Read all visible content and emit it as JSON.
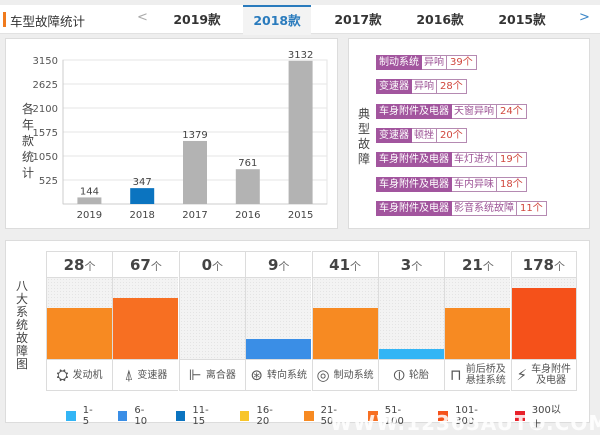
{
  "header": {
    "title": "车型故障统计",
    "prev_arrow": "<",
    "next_arrow": ">",
    "tabs": [
      {
        "label": "2019款",
        "active": false
      },
      {
        "label": "2018款",
        "active": true
      },
      {
        "label": "2017款",
        "active": false
      },
      {
        "label": "2016款",
        "active": false
      },
      {
        "label": "2015款",
        "active": false
      }
    ]
  },
  "years_panel": {
    "side_label": "各年款统计"
  },
  "chart_data": {
    "type": "bar",
    "title": "",
    "xlabel": "",
    "ylabel": "各年款统计",
    "categories": [
      "2019",
      "2018",
      "2017",
      "2016",
      "2015"
    ],
    "values": [
      144,
      347,
      1379,
      761,
      3132
    ],
    "highlight_index": 1,
    "yticks": [
      525,
      1050,
      1575,
      2100,
      2625,
      3150
    ],
    "ylim": [
      0,
      3150
    ],
    "grid": true,
    "colors": {
      "default": "#b3b3b3",
      "highlight": "#0b74c0"
    }
  },
  "typical_panel": {
    "side_label": "典型故障",
    "faults": [
      {
        "category": "制动系统",
        "name": "异响",
        "count": "39个"
      },
      {
        "category": "变速器",
        "name": "异响",
        "count": "28个"
      },
      {
        "category": "车身附件及电器",
        "name": "天窗异响",
        "count": "24个"
      },
      {
        "category": "变速器",
        "name": "顿挫",
        "count": "20个"
      },
      {
        "category": "车身附件及电器",
        "name": "车灯进水",
        "count": "19个"
      },
      {
        "category": "车身附件及电器",
        "name": "车内异味",
        "count": "18个"
      },
      {
        "category": "车身附件及电器",
        "name": "影音系统故障",
        "count": "11个"
      }
    ]
  },
  "systems_panel": {
    "side_label": "八大系统故障图",
    "unit": "个",
    "systems": [
      {
        "name": "发动机",
        "count": 28,
        "level": 5,
        "icon": "engine-icon",
        "glyph": "⛭"
      },
      {
        "name": "变速器",
        "count": 67,
        "level": 6,
        "icon": "gear-shift-icon",
        "glyph": "⍋"
      },
      {
        "name": "离合器",
        "count": 0,
        "level": 0,
        "icon": "clutch-pedal-icon",
        "glyph": "⊩"
      },
      {
        "name": "转向系统",
        "count": 9,
        "level": 2,
        "icon": "steering-wheel-icon",
        "glyph": "⊛"
      },
      {
        "name": "制动系统",
        "count": 41,
        "level": 5,
        "icon": "brake-disc-icon",
        "glyph": "◎"
      },
      {
        "name": "轮胎",
        "count": 3,
        "level": 1,
        "icon": "tire-icon",
        "glyph": "⦶"
      },
      {
        "name": "前后桥及悬挂系统",
        "name_line1": "前后桥及",
        "name_line2": "悬挂系统",
        "count": 21,
        "level": 5,
        "icon": "suspension-icon",
        "glyph": "⊓"
      },
      {
        "name": "车身附件及电器",
        "name_line1": "车身附件",
        "name_line2": "及电器",
        "count": 178,
        "level": 7,
        "icon": "battery-icon",
        "glyph": "⚡"
      }
    ],
    "legend": [
      {
        "label": "1-5",
        "color": "#33b5f5"
      },
      {
        "label": "6-10",
        "color": "#3a8ee6"
      },
      {
        "label": "11-15",
        "color": "#0b74c0"
      },
      {
        "label": "16-20",
        "color": "#f8c52a"
      },
      {
        "label": "21-50",
        "color": "#f78a22"
      },
      {
        "label": "51-100",
        "color": "#f76f22"
      },
      {
        "label": "101-300",
        "color": "#f5511a"
      },
      {
        "label": "300以上",
        "color": "#e8202a"
      }
    ],
    "max_level": 8
  },
  "watermark": "WWW.12365AUTO.COM.CN"
}
